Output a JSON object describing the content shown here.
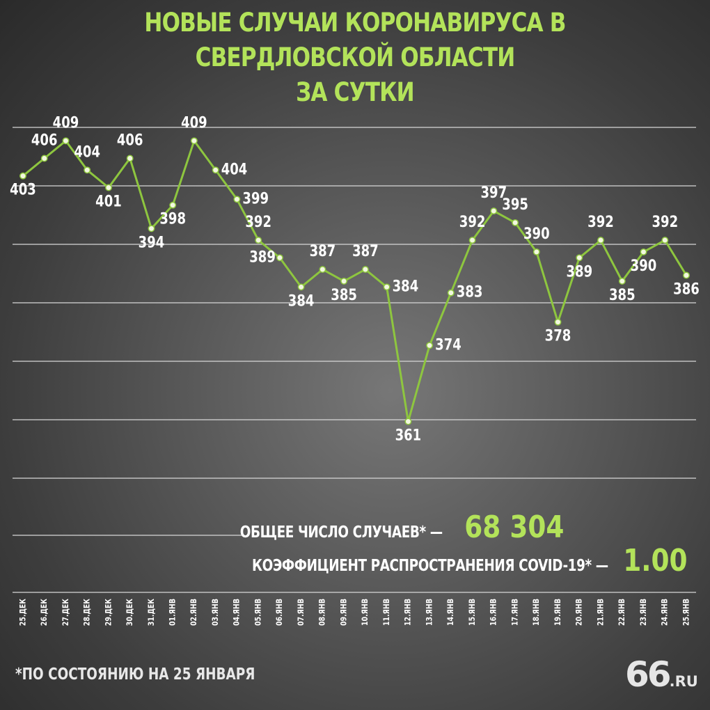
{
  "title_line1": "НОВЫЕ СЛУЧАИ КОРОНАВИРУСА В СВЕРДЛОВСКОЙ ОБЛАСТИ",
  "title_line2": "ЗА СУТКИ",
  "stats": {
    "total_label": "ОБЩЕЕ ЧИСЛО СЛУЧАЕВ* —",
    "total_value": "68 304",
    "r_label": "КОЭФФИЦИЕНТ РАСПРОСТРАНЕНИЯ COVID-19* —",
    "r_value": "1.00"
  },
  "footnote": "*ПО СОСТОЯНИЮ НА 25 ЯНВАРЯ",
  "logo": {
    "number": "66",
    "domain": ".RU"
  },
  "colors": {
    "accent": "#b3e35a",
    "line": "#8ec63f",
    "text": "#ffffff"
  },
  "chart_data": {
    "type": "line",
    "categories": [
      "25.ДЕК",
      "26.ДЕК",
      "27.ДЕК",
      "28.ДЕК",
      "29.ДЕК",
      "30.ДЕК",
      "31.ДЕК",
      "01.ЯНВ",
      "02.ЯНВ",
      "03.ЯНВ",
      "04.ЯНВ",
      "05.ЯНВ",
      "06.ЯНВ",
      "07.ЯНВ",
      "08.ЯНВ",
      "09.ЯНВ",
      "10.ЯНВ",
      "11.ЯНВ",
      "12.ЯНВ",
      "13.ЯНВ",
      "14.ЯНВ",
      "15.ЯНВ",
      "16.ЯНВ",
      "17.ЯНВ",
      "18.ЯНВ",
      "19.ЯНВ",
      "20.ЯНВ",
      "21.ЯНВ",
      "22.ЯНВ",
      "23.ЯНВ",
      "24.ЯНВ",
      "25.ЯНВ"
    ],
    "values": [
      403,
      406,
      409,
      404,
      401,
      406,
      394,
      398,
      409,
      404,
      399,
      392,
      389,
      384,
      387,
      385,
      387,
      384,
      361,
      374,
      383,
      392,
      397,
      395,
      390,
      378,
      389,
      392,
      385,
      390,
      392,
      386
    ],
    "label_positions": [
      "below",
      "above",
      "above",
      "above",
      "below",
      "above",
      "below",
      "below",
      "above",
      "right",
      "right",
      "above",
      "left",
      "below",
      "above",
      "below",
      "above",
      "right",
      "below",
      "right",
      "right",
      "above",
      "above",
      "above",
      "above",
      "below",
      "below",
      "above",
      "below",
      "below",
      "above",
      "below"
    ],
    "title": "НОВЫЕ СЛУЧАИ КОРОНАВИРУСА В СВЕРДЛОВСКОЙ ОБЛАСТИ ЗА СУТКИ",
    "xlabel": "",
    "ylabel": "",
    "grid": true,
    "legend": "none"
  }
}
